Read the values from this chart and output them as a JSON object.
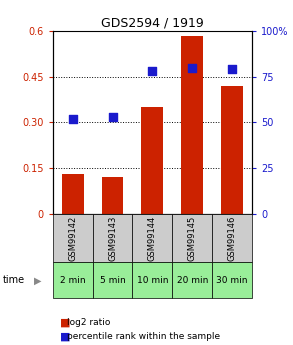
{
  "title": "GDS2594 / 1919",
  "samples": [
    "GSM99142",
    "GSM99143",
    "GSM99144",
    "GSM99145",
    "GSM99146"
  ],
  "time_labels": [
    "2 min",
    "5 min",
    "10 min",
    "20 min",
    "30 min"
  ],
  "log2_ratio": [
    0.13,
    0.12,
    0.35,
    0.585,
    0.42
  ],
  "percentile_rank": [
    52,
    53,
    78,
    80,
    79
  ],
  "bar_color": "#cc2200",
  "dot_color": "#1a1acc",
  "left_ylim": [
    0,
    0.6
  ],
  "right_ylim": [
    0,
    100
  ],
  "left_yticks": [
    0,
    0.15,
    0.3,
    0.45,
    0.6
  ],
  "left_yticklabels": [
    "0",
    "0.15",
    "0.30",
    "0.45",
    "0.6"
  ],
  "right_yticks": [
    0,
    25,
    50,
    75,
    100
  ],
  "right_yticklabels": [
    "0",
    "25",
    "50",
    "75",
    "100%"
  ],
  "dotted_lines": [
    0.15,
    0.3,
    0.45
  ],
  "bar_width": 0.55,
  "dot_size": 30,
  "xlabel_color": "#cc2200",
  "right_tick_color": "#1a1acc",
  "gray_bg": "#cccccc",
  "green_bg": "#99ee99",
  "legend_bar_label": "log2 ratio",
  "legend_dot_label": "percentile rank within the sample",
  "fig_width": 2.93,
  "fig_height": 3.45,
  "fig_dpi": 100
}
